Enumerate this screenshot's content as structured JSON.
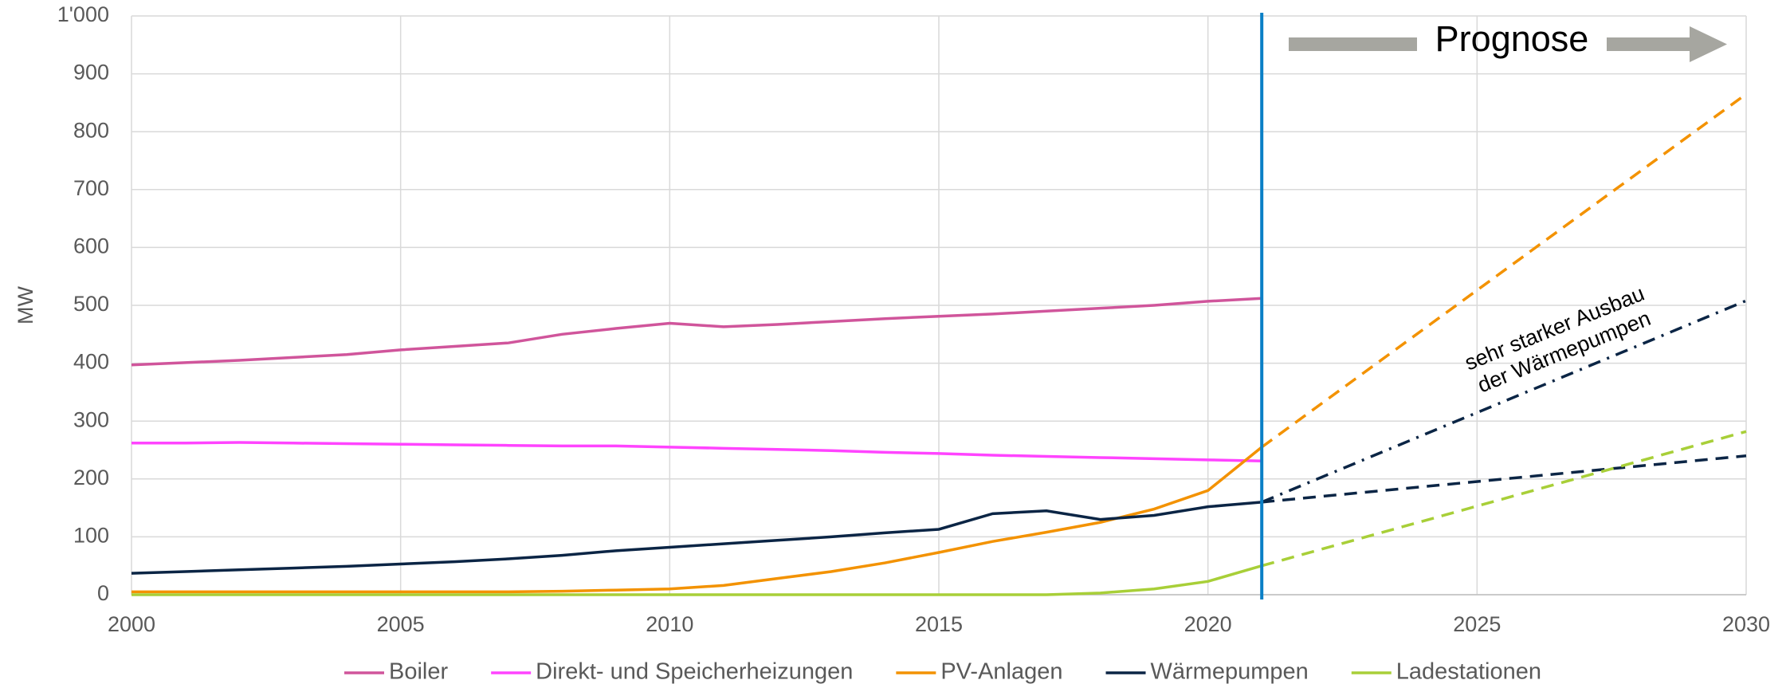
{
  "chart_data": {
    "type": "line",
    "ylabel": "MW",
    "x": [
      2000,
      2001,
      2002,
      2003,
      2004,
      2005,
      2006,
      2007,
      2008,
      2009,
      2010,
      2011,
      2012,
      2013,
      2014,
      2015,
      2016,
      2017,
      2018,
      2019,
      2020,
      2021
    ],
    "series": [
      {
        "name": "Boiler",
        "color": "#d0559b",
        "values": [
          397,
          401,
          405,
          410,
          415,
          423,
          429,
          435,
          450,
          460,
          469,
          463,
          467,
          472,
          477,
          481,
          485,
          490,
          495,
          500,
          507,
          512
        ]
      },
      {
        "name": "Direkt- und Speicherheizungen",
        "color": "#ff44ff",
        "values": [
          262,
          262,
          263,
          262,
          261,
          260,
          259,
          258,
          257,
          257,
          255,
          253,
          251,
          249,
          246,
          244,
          241,
          239,
          237,
          235,
          233,
          231
        ]
      },
      {
        "name": "PV-Anlagen",
        "color": "#f39200",
        "values": [
          5,
          5,
          5,
          5,
          5,
          5,
          5,
          5,
          6,
          8,
          10,
          16,
          28,
          40,
          55,
          73,
          92,
          108,
          125,
          148,
          180,
          255
        ]
      },
      {
        "name": "Wärmepumpen",
        "color": "#0b2545",
        "values": [
          37,
          40,
          43,
          46,
          49,
          53,
          57,
          62,
          68,
          76,
          82,
          88,
          94,
          100,
          107,
          113,
          140,
          145,
          130,
          137,
          152,
          160
        ]
      },
      {
        "name": "Ladestationen",
        "color": "#a8cf38",
        "values": [
          0,
          0,
          0,
          0,
          0,
          0,
          0,
          0,
          0,
          0,
          0,
          0,
          0,
          0,
          0,
          0,
          0,
          0,
          3,
          10,
          23,
          50
        ]
      }
    ],
    "forecasts": [
      {
        "x": [
          2021,
          2030
        ],
        "values": [
          255,
          865
        ],
        "color": "#f39200",
        "dash": "dashed"
      },
      {
        "x": [
          2021,
          2030
        ],
        "values": [
          160,
          240
        ],
        "color": "#0b2545",
        "dash": "dashed"
      },
      {
        "x": [
          2021,
          2030
        ],
        "values": [
          160,
          508
        ],
        "color": "#0b2545",
        "dash": "dashdot"
      },
      {
        "x": [
          2021,
          2030
        ],
        "values": [
          50,
          282
        ],
        "color": "#a8cf38",
        "dash": "dashed"
      }
    ],
    "prognosis_line": {
      "x": 2021,
      "color": "#0a7fc6"
    },
    "prognosis_label": "Prognose",
    "annotation": [
      "sehr starker Ausbau",
      "der Wärmepumpen"
    ],
    "xlim": [
      2000,
      2030
    ],
    "xticks": [
      2000,
      2005,
      2010,
      2015,
      2020,
      2025,
      2030
    ],
    "ylim": [
      0,
      1000
    ],
    "yticks": [
      0,
      100,
      200,
      300,
      400,
      500,
      600,
      700,
      800,
      900,
      {
        "value": 1000,
        "label": "1'000"
      }
    ],
    "grid": true,
    "legend": "bottom"
  }
}
